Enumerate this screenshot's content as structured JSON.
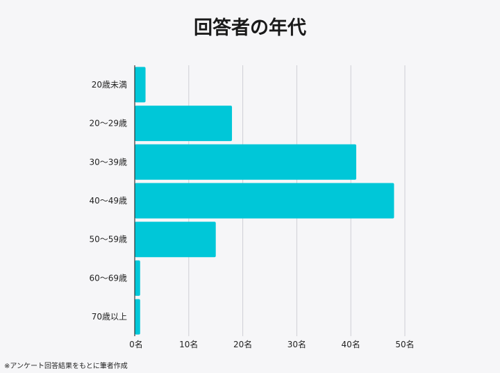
{
  "title": "回答者の年代",
  "note": "※アンケート回答結果をもとに筆者作成",
  "colors": {
    "bar": "#00c7d8",
    "grid": "#cfcfd4",
    "axis": "#333333"
  },
  "chart_data": {
    "type": "bar",
    "orientation": "horizontal",
    "categories": [
      "20歳未満",
      "20～29歳",
      "30～39歳",
      "40～49歳",
      "50～59歳",
      "60～69歳",
      "70歳以上"
    ],
    "values": [
      2,
      18,
      41,
      48,
      15,
      1,
      1
    ],
    "xlim": [
      0,
      50
    ],
    "xticks": [
      "0名",
      "10名",
      "20名",
      "30名",
      "40名",
      "50名"
    ],
    "grid": true
  }
}
